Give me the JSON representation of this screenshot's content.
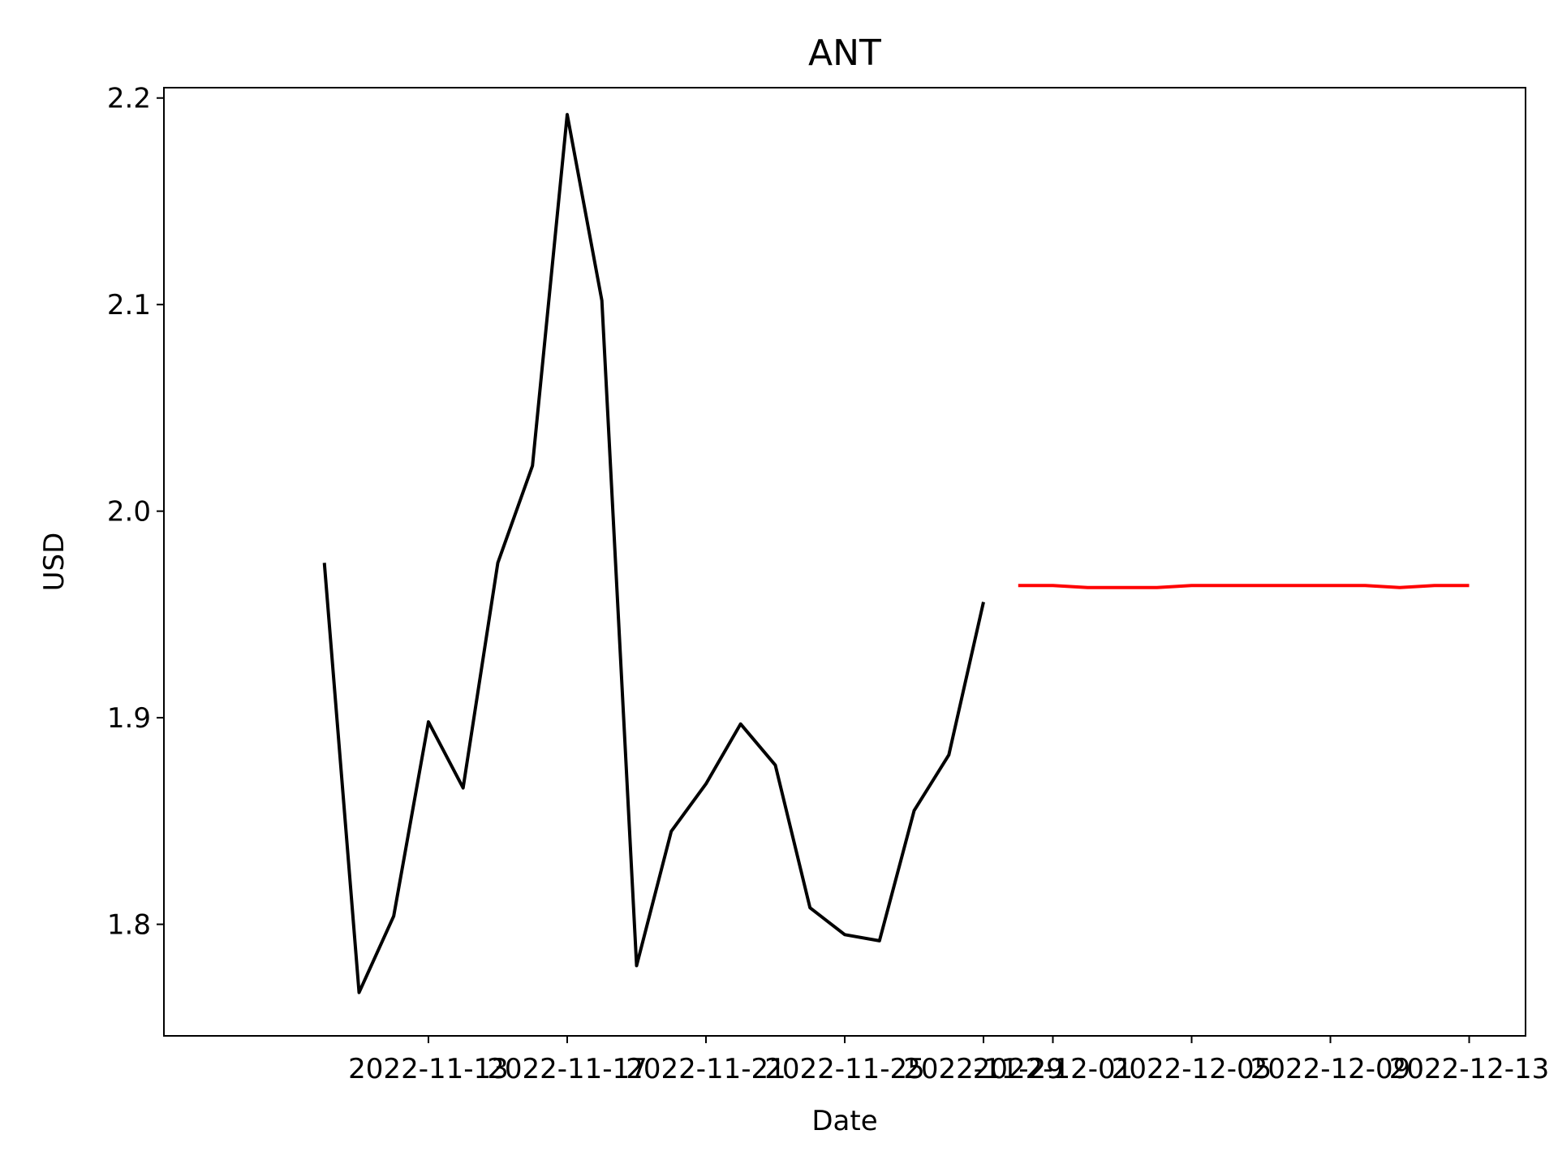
{
  "chart_data": {
    "type": "line",
    "title": "ANT",
    "xlabel": "Date",
    "ylabel": "USD",
    "ylim": [
      1.746,
      2.205
    ],
    "xlim": [
      "2022-11-05T09:00",
      "2022-12-14T15:00"
    ],
    "yticks": [
      "1.8",
      "1.9",
      "2.0",
      "2.1",
      "2.2"
    ],
    "xticks": [
      "2022-11-13",
      "2022-11-17",
      "2022-11-21",
      "2022-11-25",
      "2022-11-29",
      "2022-12-01",
      "2022-12-05",
      "2022-12-09",
      "2022-12-13"
    ],
    "grid": false,
    "legend": "none",
    "series": [
      {
        "color": "#000000",
        "points": [
          [
            "2022-11-10",
            1.975
          ],
          [
            "2022-11-11",
            1.767
          ],
          [
            "2022-11-12",
            1.804
          ],
          [
            "2022-11-13",
            1.898
          ],
          [
            "2022-11-14",
            1.866
          ],
          [
            "2022-11-15",
            1.975
          ],
          [
            "2022-11-16",
            2.022
          ],
          [
            "2022-11-17",
            2.192
          ],
          [
            "2022-11-18",
            2.102
          ],
          [
            "2022-11-19",
            1.78
          ],
          [
            "2022-11-20",
            1.845
          ],
          [
            "2022-11-21",
            1.868
          ],
          [
            "2022-11-22",
            1.897
          ],
          [
            "2022-11-23",
            1.877
          ],
          [
            "2022-11-24",
            1.808
          ],
          [
            "2022-11-25",
            1.795
          ],
          [
            "2022-11-26",
            1.792
          ],
          [
            "2022-11-27",
            1.855
          ],
          [
            "2022-11-28",
            1.882
          ],
          [
            "2022-11-29",
            1.956
          ]
        ]
      },
      {
        "color": "#ff0000",
        "points": [
          [
            "2022-11-30",
            1.964
          ],
          [
            "2022-12-01",
            1.964
          ],
          [
            "2022-12-02",
            1.963
          ],
          [
            "2022-12-03",
            1.963
          ],
          [
            "2022-12-04",
            1.963
          ],
          [
            "2022-12-05",
            1.964
          ],
          [
            "2022-12-06",
            1.964
          ],
          [
            "2022-12-07",
            1.964
          ],
          [
            "2022-12-08",
            1.964
          ],
          [
            "2022-12-09",
            1.964
          ],
          [
            "2022-12-10",
            1.964
          ],
          [
            "2022-12-11",
            1.963
          ],
          [
            "2022-12-12",
            1.964
          ],
          [
            "2022-12-13",
            1.964
          ]
        ]
      }
    ]
  }
}
